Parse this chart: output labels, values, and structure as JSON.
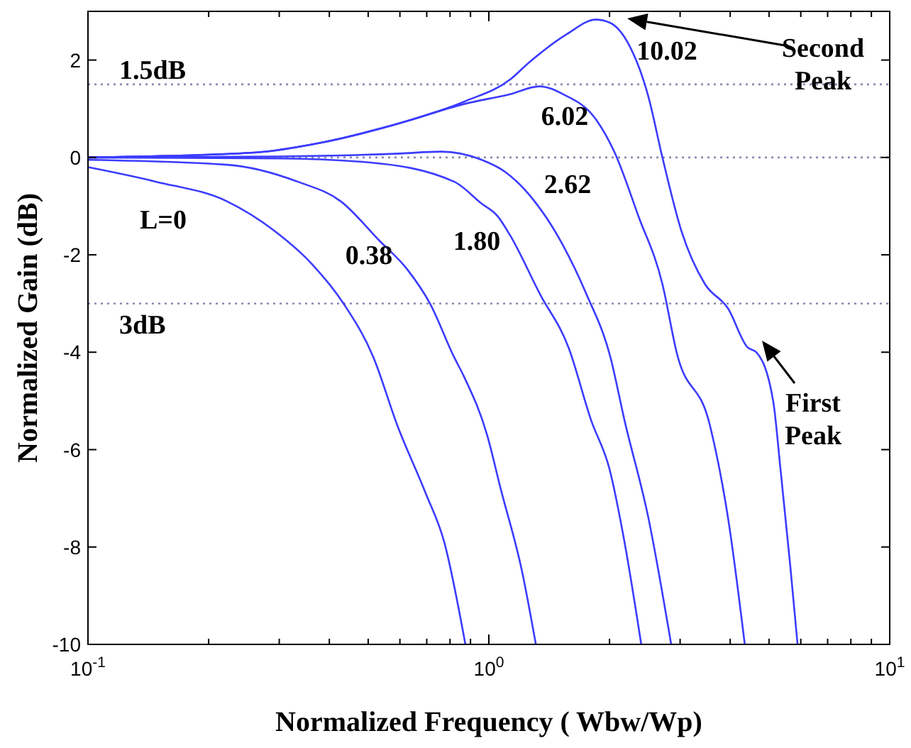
{
  "chart_data": {
    "type": "line",
    "xlabel": "Normalized Frequency ( Wbw/Wp)",
    "ylabel": "Normalized Gain (dB)",
    "log": "x",
    "xlim": [
      0.1,
      10
    ],
    "ylim": [
      -10,
      3
    ],
    "xticks": [
      {
        "value": 0.1,
        "label": "10$^{-1}$"
      },
      {
        "value": 0.2,
        "label": null
      },
      {
        "value": 0.3,
        "label": null
      },
      {
        "value": 0.4,
        "label": null
      },
      {
        "value": 0.5,
        "label": null
      },
      {
        "value": 0.6,
        "label": null
      },
      {
        "value": 0.7,
        "label": null
      },
      {
        "value": 0.8,
        "label": null
      },
      {
        "value": 0.9,
        "label": null
      },
      {
        "value": 1,
        "label": "10$^{0}$"
      },
      {
        "value": 2,
        "label": null
      },
      {
        "value": 3,
        "label": null
      },
      {
        "value": 4,
        "label": null
      },
      {
        "value": 5,
        "label": null
      },
      {
        "value": 6,
        "label": null
      },
      {
        "value": 7,
        "label": null
      },
      {
        "value": 8,
        "label": null
      },
      {
        "value": 9,
        "label": null
      },
      {
        "value": 10,
        "label": "10$^{1}$"
      }
    ],
    "yticks": [
      -10,
      -8,
      -6,
      -4,
      -2,
      0,
      2
    ],
    "grid": false,
    "legend": false,
    "marker": "none",
    "line_style": "solid",
    "series": [
      {
        "name": "L=0",
        "color": "#3c3cff",
        "x": [
          0.1,
          0.148,
          0.222,
          0.291,
          0.363,
          0.434,
          0.515,
          0.591,
          0.696,
          0.774,
          0.874
        ],
        "values": [
          -0.2,
          -0.5,
          -0.9,
          -1.5,
          -2.2,
          -3.0,
          -4.1,
          -5.5,
          -6.9,
          -7.9,
          -10
        ]
      },
      {
        "name": "0.38",
        "color": "#3c3cff",
        "x": [
          0.1,
          0.222,
          0.334,
          0.427,
          0.532,
          0.626,
          0.713,
          0.819,
          0.867,
          0.99,
          1.07,
          1.21,
          1.31
        ],
        "values": [
          -0.05,
          -0.15,
          -0.5,
          -0.9,
          -1.7,
          -2.3,
          -3.0,
          -4.1,
          -4.5,
          -5.7,
          -6.8,
          -8.5,
          -10
        ]
      },
      {
        "name": "1.80",
        "color": "#3c3cff",
        "x": [
          0.1,
          0.3,
          0.5,
          0.82,
          0.96,
          1.05,
          1.13,
          1.34,
          1.58,
          1.8,
          2.0,
          2.18,
          2.4
        ],
        "values": [
          0,
          -0.02,
          -0.1,
          -0.5,
          -0.95,
          -1.2,
          -1.6,
          -2.8,
          -3.9,
          -5.4,
          -6.4,
          -7.9,
          -10
        ]
      },
      {
        "name": "2.62",
        "color": "#3c3cff",
        "x": [
          0.1,
          0.3,
          0.6,
          0.76,
          0.96,
          1.1,
          1.3,
          1.53,
          1.75,
          2.01,
          2.18,
          2.5,
          2.85
        ],
        "values": [
          0,
          0.02,
          0.08,
          0.12,
          -0.05,
          -0.3,
          -0.9,
          -1.8,
          -2.8,
          -4.1,
          -5.4,
          -7.4,
          -10
        ]
      },
      {
        "name": "6.02",
        "color": "#3c3cff",
        "x": [
          0.1,
          0.26,
          0.38,
          0.58,
          0.87,
          1.13,
          1.34,
          1.53,
          1.85,
          2.06,
          2.36,
          2.71,
          2.94,
          3.56,
          3.95,
          4.35
        ],
        "values": [
          0,
          0.1,
          0.3,
          0.67,
          1.1,
          1.3,
          1.46,
          1.3,
          0.78,
          0.1,
          -1.2,
          -2.6,
          -4.0,
          -5.5,
          -7.4,
          -10
        ]
      },
      {
        "name": "10.02",
        "color": "#3c3cff",
        "x": [
          0.1,
          0.26,
          0.38,
          0.58,
          0.87,
          1.13,
          1.26,
          1.57,
          1.85,
          2.0,
          2.23,
          2.5,
          2.71,
          3.02,
          3.46,
          3.95,
          4.42,
          4.65,
          5.12,
          5.34,
          5.65,
          5.89
        ],
        "values": [
          0,
          0.1,
          0.3,
          0.67,
          1.15,
          1.6,
          1.95,
          2.54,
          2.83,
          2.77,
          2.33,
          1.25,
          0,
          -1.5,
          -2.6,
          -3.1,
          -3.9,
          -4.0,
          -5.0,
          -6.4,
          -8.4,
          -10
        ]
      }
    ],
    "ref_lines": [
      {
        "axis": "y",
        "value": 1.5,
        "label": "1.5dB",
        "color": "#8a8ab0",
        "line_style": "dotted"
      },
      {
        "axis": "y",
        "value": 0,
        "color": "#8a8ab0",
        "line_style": "dotted"
      },
      {
        "axis": "y",
        "value": -3,
        "label": "3dB",
        "color": "#8a8ab0",
        "line_style": "dotted"
      }
    ],
    "annotations": [
      "Second\nPeak",
      "First\nPeak"
    ]
  }
}
